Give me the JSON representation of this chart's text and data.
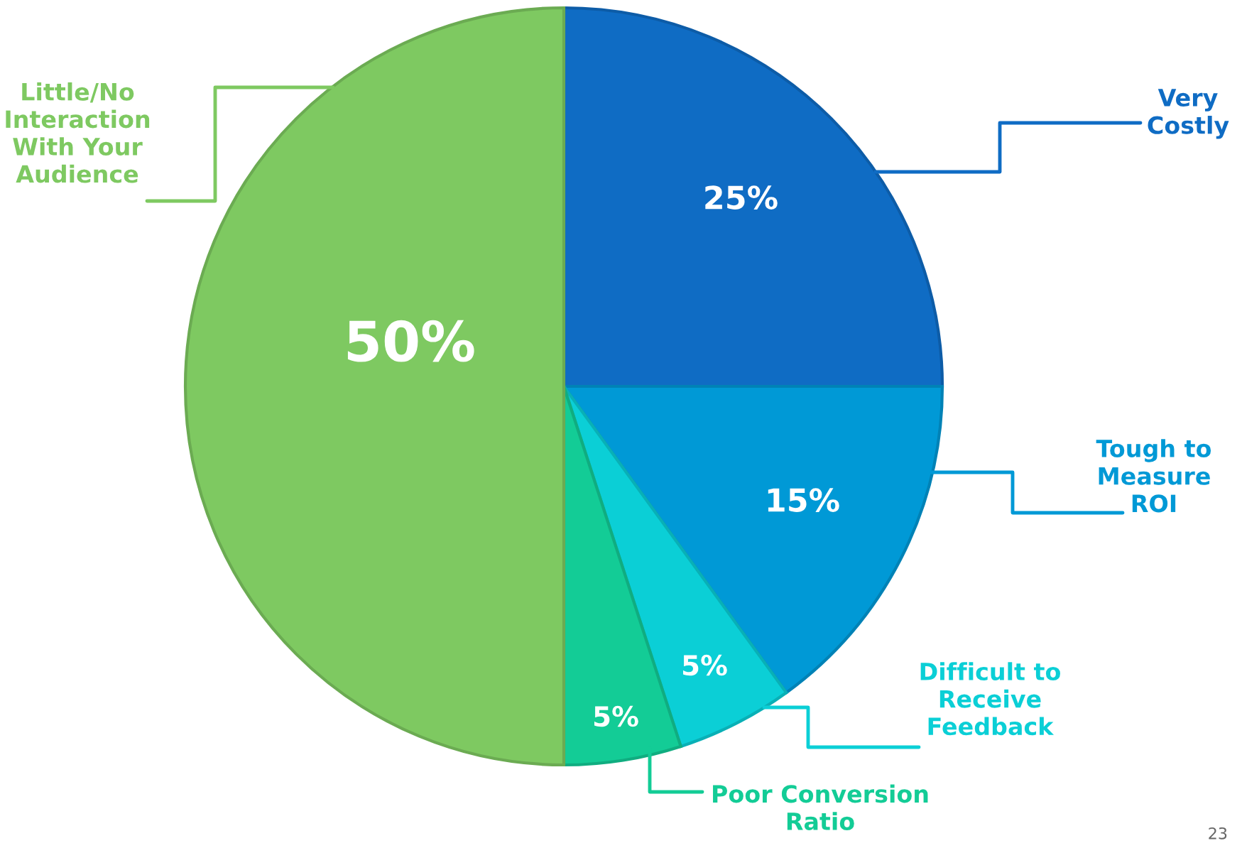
{
  "chart_data": {
    "type": "pie",
    "categories": [
      "Very\nCostly",
      "Tough to\nMeasure\nROI",
      "Difficult to\nReceive\nFeedback",
      "Poor Conversion\nRatio",
      "Little/No\nInteraction\nWith Your\nAudience"
    ],
    "values": [
      25,
      15,
      5,
      5,
      50
    ],
    "colors": [
      "#0f6cc4",
      "#0099d6",
      "#0bcfd6",
      "#13cc96",
      "#7ec961"
    ],
    "value_labels": [
      "25%",
      "15%",
      "5%",
      "5%",
      "50%"
    ],
    "annotations": [
      "23"
    ]
  }
}
